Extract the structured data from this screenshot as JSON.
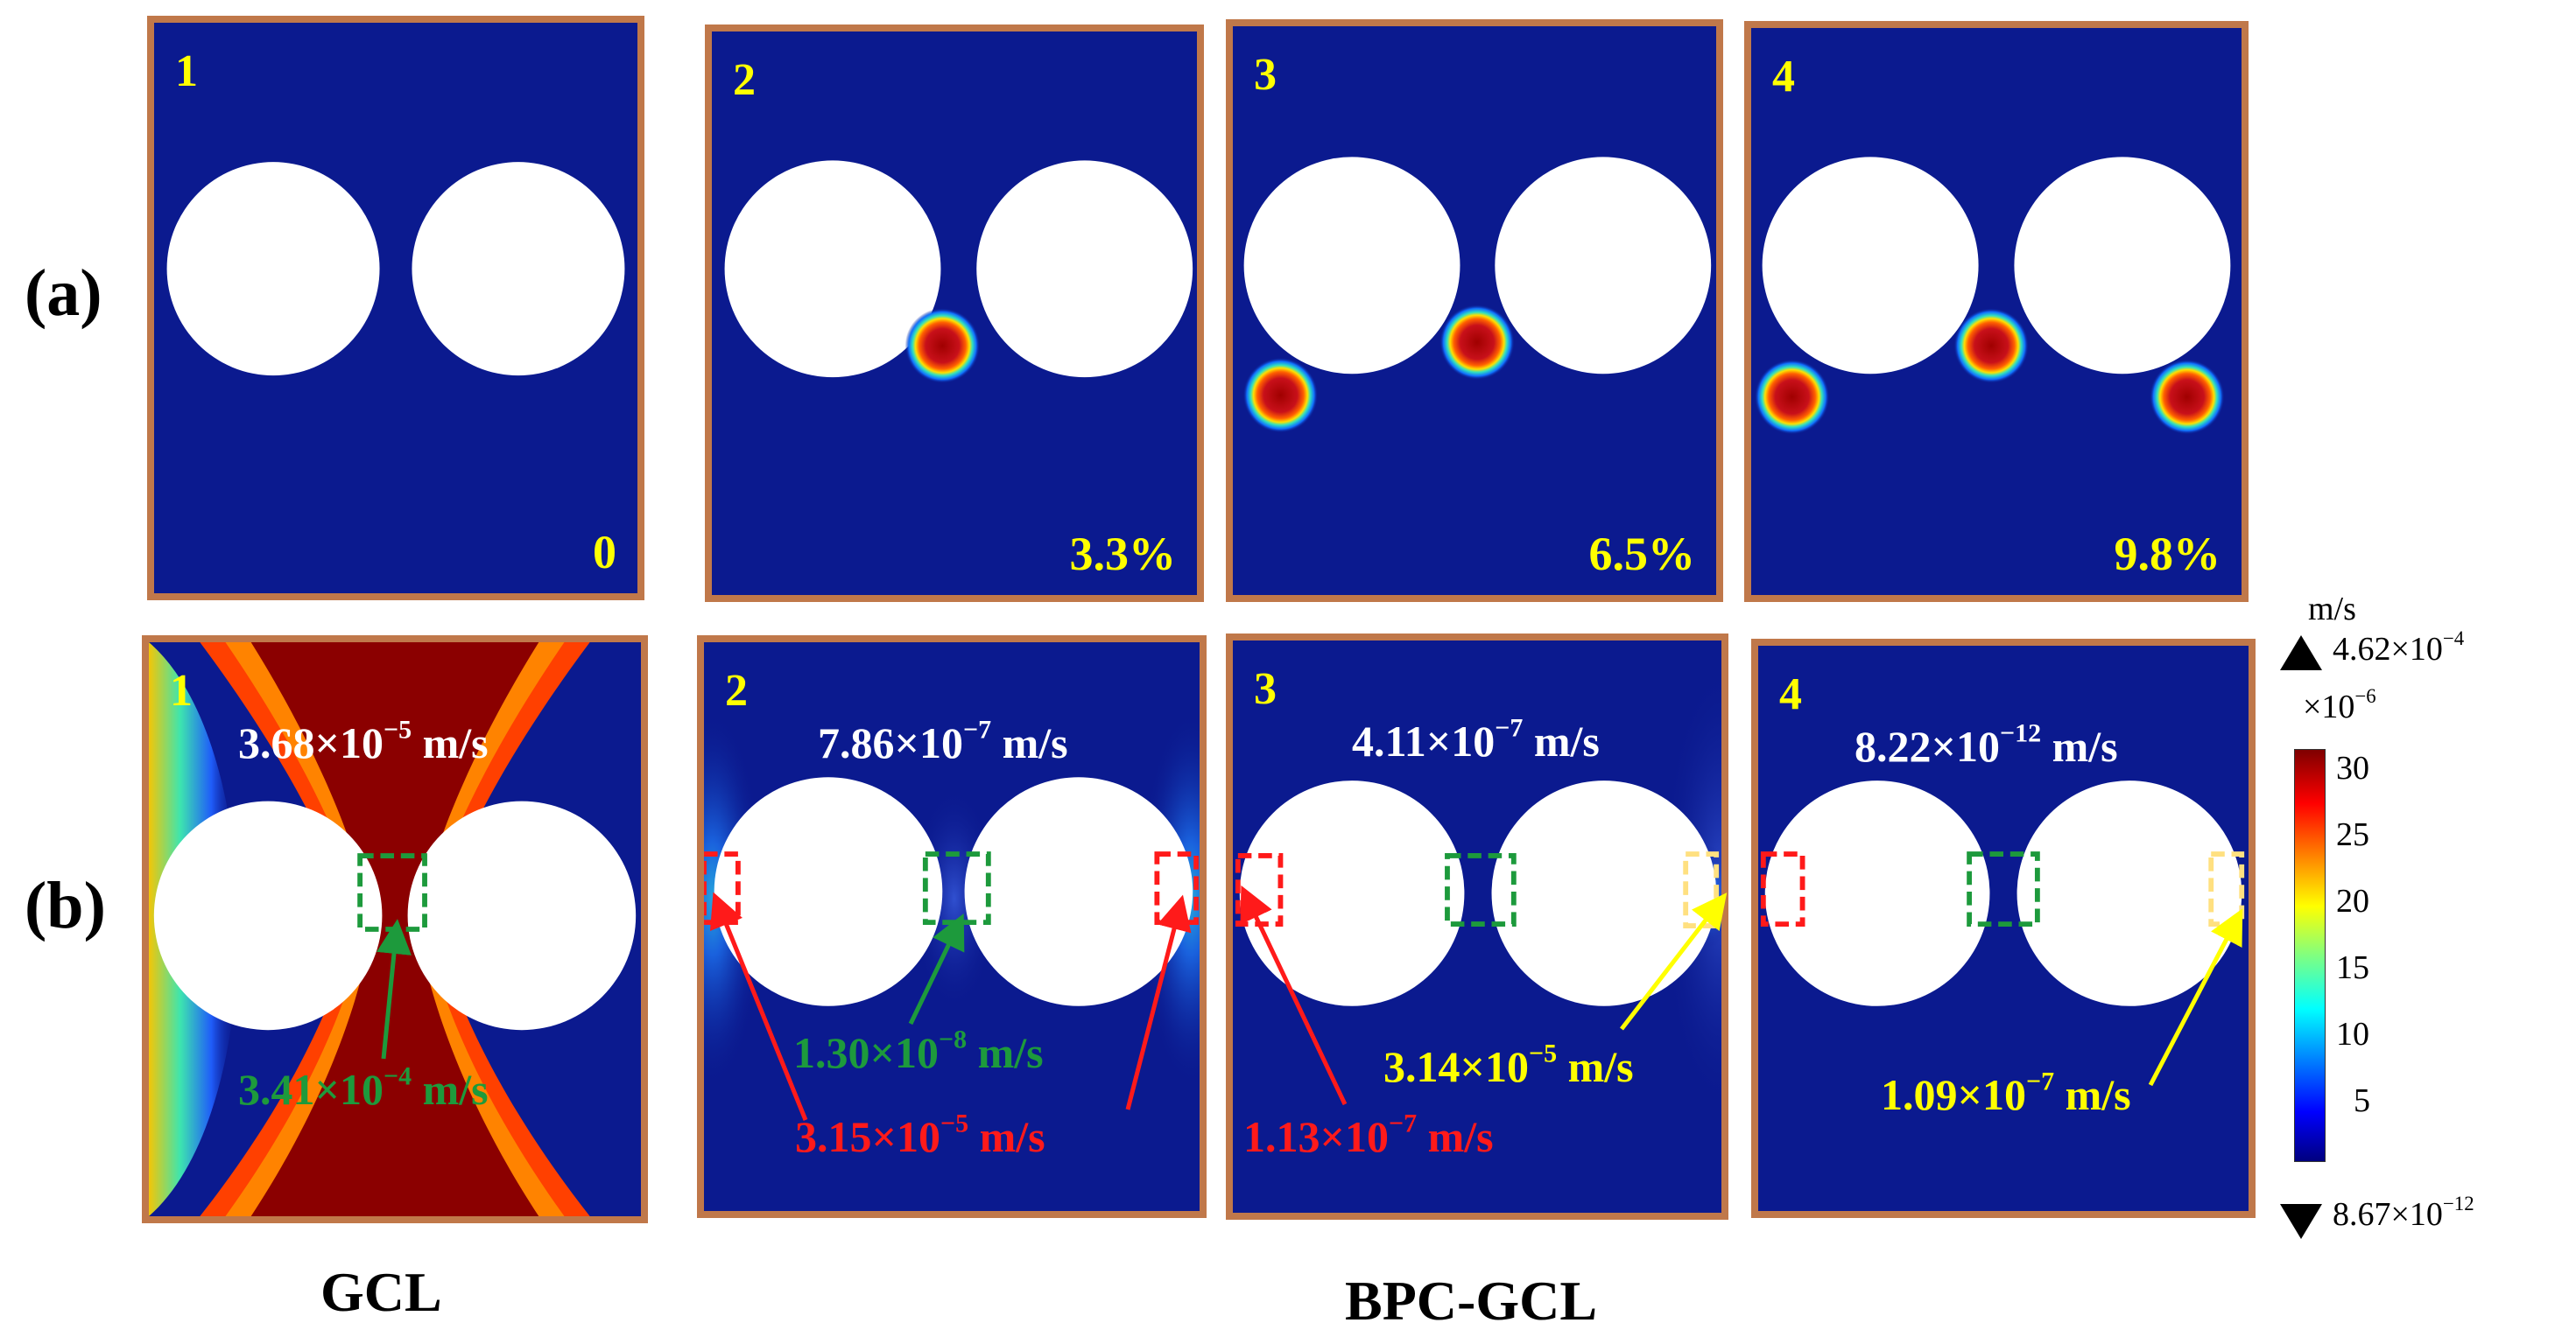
{
  "row_labels": {
    "a": "(a)",
    "b": "(b)"
  },
  "captions": {
    "gcl": "GCL",
    "bpc": "BPC-GCL"
  },
  "panels_a": [
    {
      "num": "1",
      "pct": "0"
    },
    {
      "num": "2",
      "pct": "3.3%"
    },
    {
      "num": "3",
      "pct": "6.5%"
    },
    {
      "num": "4",
      "pct": "9.8%"
    }
  ],
  "panels_b": [
    {
      "num": "1",
      "vel_base": "3.68×10",
      "vel_exp": "−5",
      "vel_unit": " m/s"
    },
    {
      "num": "2",
      "vel_base": "7.86×10",
      "vel_exp": "−7",
      "vel_unit": " m/s"
    },
    {
      "num": "3",
      "vel_base": "4.11×10",
      "vel_exp": "−7",
      "vel_unit": " m/s"
    },
    {
      "num": "4",
      "vel_base": "8.22×10",
      "vel_exp": "−12",
      "vel_unit": " m/s"
    }
  ],
  "annotations": {
    "p1_green": {
      "base": "3.41×10",
      "exp": "−4",
      "unit": " m/s"
    },
    "p2_green": {
      "base": "1.30×10",
      "exp": "−8",
      "unit": " m/s"
    },
    "p2_red": {
      "base": "3.15×10",
      "exp": "−5",
      "unit": " m/s"
    },
    "p3_red": {
      "base": "1.13×10",
      "exp": "−7",
      "unit": " m/s"
    },
    "p3_yellow": {
      "base": "3.14×10",
      "exp": "−5",
      "unit": " m/s"
    },
    "p4_yellow": {
      "base": "1.09×10",
      "exp": "−7",
      "unit": " m/s"
    }
  },
  "colorbar": {
    "unit": "m/s",
    "max_base": "4.62×10",
    "max_exp": "−4",
    "scale_base": "×10",
    "scale_exp": "−6",
    "min_base": "8.67×10",
    "min_exp": "−12",
    "ticks": [
      "30",
      "25",
      "20",
      "15",
      "10",
      "5"
    ]
  },
  "colors": {
    "frame": "#c0784a",
    "background_field": "#0b1a8f",
    "high_field": "#8b0000",
    "label_yellow": "#ffff00",
    "annotation_green": "#1d9a3c",
    "annotation_red": "#ff1a1a"
  }
}
